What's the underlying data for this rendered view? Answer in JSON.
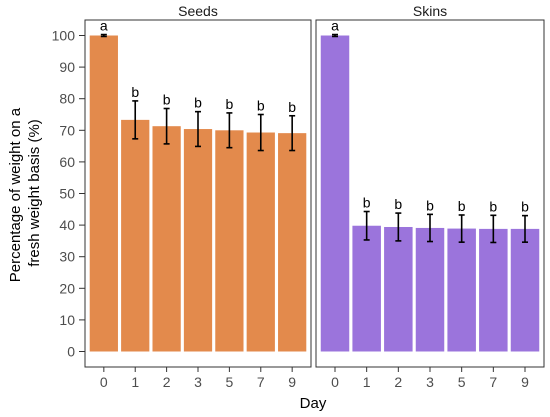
{
  "chart_data": {
    "type": "bar",
    "xlabel": "Day",
    "ylabel_line1": "Percentage of weight on a",
    "ylabel_line2": "fresh weight basis (%)",
    "ylim": [
      0,
      100
    ],
    "yticks": [
      "0",
      "10",
      "20",
      "30",
      "40",
      "50",
      "60",
      "70",
      "80",
      "90",
      "100"
    ],
    "categories": [
      "0",
      "1",
      "2",
      "3",
      "5",
      "7",
      "9"
    ],
    "panels": [
      {
        "name": "Seeds",
        "color": "#E38A4C",
        "values": [
          100,
          73.3,
          71.3,
          70.4,
          70.0,
          69.3,
          69.1
        ],
        "errors": [
          0.3,
          6.0,
          5.6,
          5.5,
          5.5,
          5.7,
          5.5
        ],
        "labels": [
          "a",
          "b",
          "b",
          "b",
          "b",
          "b",
          "b"
        ]
      },
      {
        "name": "Skins",
        "color": "#9B74DC",
        "values": [
          100,
          39.8,
          39.4,
          39.1,
          38.9,
          38.8,
          38.8
        ],
        "errors": [
          0.3,
          4.5,
          4.4,
          4.3,
          4.3,
          4.3,
          4.2
        ],
        "labels": [
          "a",
          "b",
          "b",
          "b",
          "b",
          "b",
          "b"
        ]
      }
    ]
  }
}
